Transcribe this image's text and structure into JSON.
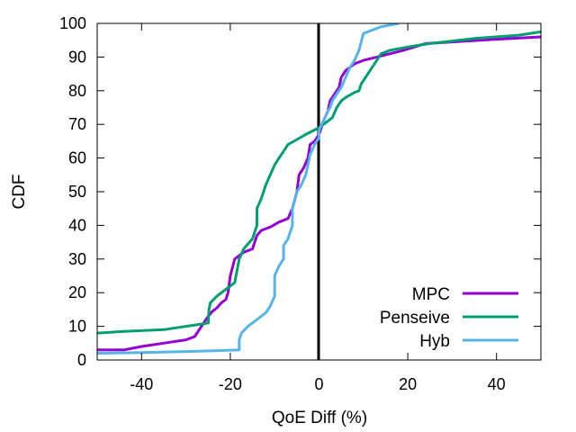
{
  "chart_data": {
    "type": "line",
    "xlabel": "QoE Diff (%)",
    "ylabel": "CDF",
    "xlim": [
      -50,
      50
    ],
    "ylim": [
      0,
      100
    ],
    "xticks": [
      -40,
      -20,
      0,
      20,
      40
    ],
    "yticks": [
      0,
      10,
      20,
      30,
      40,
      50,
      60,
      70,
      80,
      90,
      100
    ],
    "xtick_labels": [
      "-40",
      "-20",
      "0",
      "20",
      "40"
    ],
    "ytick_labels": [
      "0",
      "10",
      "20",
      "30",
      "40",
      "50",
      "60",
      "70",
      "80",
      "90",
      "100"
    ],
    "grid": false,
    "legend_position": "bottom-right",
    "reference_line": {
      "x": 0,
      "color": "#000000"
    },
    "series": [
      {
        "name": "MPC",
        "color": "#9400d3",
        "points": [
          [
            -50,
            3
          ],
          [
            -44,
            3
          ],
          [
            -40,
            4
          ],
          [
            -35,
            5
          ],
          [
            -30,
            6
          ],
          [
            -28,
            7
          ],
          [
            -27,
            9
          ],
          [
            -26,
            11
          ],
          [
            -25,
            13
          ],
          [
            -24,
            14.5
          ],
          [
            -23,
            15.5
          ],
          [
            -22,
            17
          ],
          [
            -21,
            18
          ],
          [
            -20.5,
            20
          ],
          [
            -20,
            25
          ],
          [
            -19,
            30
          ],
          [
            -17,
            32
          ],
          [
            -15,
            33
          ],
          [
            -14,
            37
          ],
          [
            -13,
            38.5
          ],
          [
            -11,
            39.5
          ],
          [
            -9,
            41
          ],
          [
            -7,
            42
          ],
          [
            -6,
            45
          ],
          [
            -5,
            50
          ],
          [
            -4.5,
            55
          ],
          [
            -3.5,
            57
          ],
          [
            -2.5,
            60
          ],
          [
            -2,
            64
          ],
          [
            -1,
            65
          ],
          [
            0,
            67
          ],
          [
            1,
            71
          ],
          [
            2,
            74
          ],
          [
            2.5,
            77
          ],
          [
            3.5,
            79
          ],
          [
            4.5,
            81
          ],
          [
            5,
            84
          ],
          [
            6,
            86
          ],
          [
            8,
            88
          ],
          [
            10,
            89
          ],
          [
            13,
            90
          ],
          [
            16,
            91
          ],
          [
            19,
            92
          ],
          [
            24,
            94
          ],
          [
            30,
            94.5
          ],
          [
            40,
            95.3
          ],
          [
            50,
            96
          ]
        ]
      },
      {
        "name": "Penseive",
        "color": "#009e73",
        "points": [
          [
            -50,
            8
          ],
          [
            -44,
            8.5
          ],
          [
            -35,
            9
          ],
          [
            -30,
            10
          ],
          [
            -25,
            11
          ],
          [
            -24.8,
            15
          ],
          [
            -24.5,
            17
          ],
          [
            -23,
            19
          ],
          [
            -21,
            21
          ],
          [
            -19,
            23
          ],
          [
            -18,
            30
          ],
          [
            -17,
            33
          ],
          [
            -15,
            36
          ],
          [
            -14,
            40
          ],
          [
            -14,
            45
          ],
          [
            -13,
            48
          ],
          [
            -12,
            52
          ],
          [
            -11,
            55
          ],
          [
            -10,
            58
          ],
          [
            -9,
            60
          ],
          [
            -8,
            62
          ],
          [
            -7,
            64
          ],
          [
            -5,
            65.5
          ],
          [
            -3,
            67
          ],
          [
            0,
            69
          ],
          [
            1,
            70
          ],
          [
            2,
            71
          ],
          [
            3,
            72
          ],
          [
            4,
            75
          ],
          [
            5,
            77
          ],
          [
            6,
            78
          ],
          [
            8,
            79.5
          ],
          [
            9,
            80
          ],
          [
            9.5,
            82
          ],
          [
            10,
            83
          ],
          [
            11,
            85
          ],
          [
            12,
            87
          ],
          [
            13,
            89
          ],
          [
            14,
            91
          ],
          [
            16,
            92
          ],
          [
            20,
            93
          ],
          [
            25,
            94
          ],
          [
            35,
            95.5
          ],
          [
            45,
            96.5
          ],
          [
            50,
            97.5
          ]
        ]
      },
      {
        "name": "Hyb",
        "color": "#56b4e9",
        "points": [
          [
            -50,
            2
          ],
          [
            -40,
            2.2
          ],
          [
            -30,
            2.5
          ],
          [
            -22,
            2.8
          ],
          [
            -18,
            3
          ],
          [
            -18,
            6
          ],
          [
            -17.5,
            8
          ],
          [
            -16,
            10
          ],
          [
            -14,
            12
          ],
          [
            -12,
            14
          ],
          [
            -11,
            16
          ],
          [
            -10,
            19
          ],
          [
            -10,
            25
          ],
          [
            -9,
            28
          ],
          [
            -8,
            30
          ],
          [
            -8,
            34
          ],
          [
            -7,
            36
          ],
          [
            -6,
            40
          ],
          [
            -6,
            45
          ],
          [
            -5,
            50
          ],
          [
            -4,
            52
          ],
          [
            -3,
            55
          ],
          [
            -2.5,
            58
          ],
          [
            -2,
            61
          ],
          [
            -1,
            64
          ],
          [
            0,
            66
          ],
          [
            0,
            68
          ],
          [
            0.5,
            70
          ],
          [
            1,
            71
          ],
          [
            2,
            74
          ],
          [
            2.5,
            75
          ],
          [
            3,
            77
          ],
          [
            4,
            79
          ],
          [
            5,
            81
          ],
          [
            6,
            84
          ],
          [
            7,
            87
          ],
          [
            8,
            89
          ],
          [
            9,
            92
          ],
          [
            10,
            97
          ],
          [
            14,
            99
          ],
          [
            18,
            100
          ]
        ]
      }
    ]
  }
}
